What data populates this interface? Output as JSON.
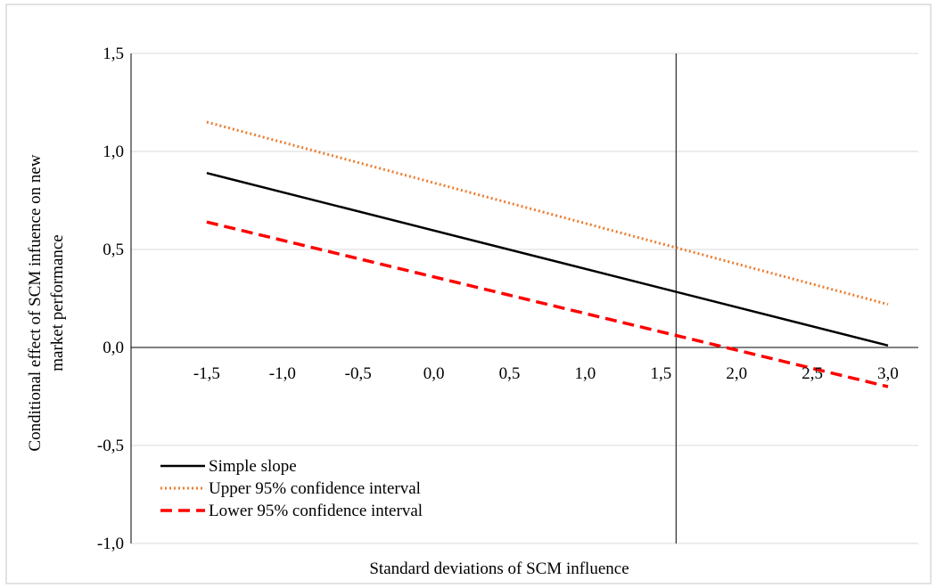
{
  "chart_data": {
    "type": "line",
    "xlabel": "Standard  deviations of SCM influence",
    "ylabel_lines": [
      "Conditional  effect of SCM infuence on new",
      "market performance"
    ],
    "xlim": [
      -2,
      3.2
    ],
    "ylim": [
      -1.0,
      1.5
    ],
    "x_ticks": [
      -1.5,
      -1.0,
      -0.5,
      0.0,
      0.5,
      1.0,
      1.5,
      2.0,
      2.5,
      3.0
    ],
    "x_tick_labels": [
      "-1,5",
      "-1,0",
      "-0,5",
      "0,0",
      "0,5",
      "1,0",
      "1,5",
      "2,0",
      "2,5",
      "3,0"
    ],
    "y_ticks": [
      -1.0,
      -0.5,
      0.0,
      0.5,
      1.0,
      1.5
    ],
    "y_tick_labels": [
      "-1,0",
      "-0,5",
      "0,0",
      "0,5",
      "1,0",
      "1,5"
    ],
    "gridlines_y": true,
    "vertical_reference_x": 1.6,
    "legend_position": "bottom-left",
    "series": [
      {
        "name": "Simple slope",
        "color": "#000000",
        "style": "solid",
        "x": [
          -1.5,
          3.0
        ],
        "y": [
          0.89,
          0.01
        ]
      },
      {
        "name": "Upper 95% confidence interval",
        "color": "#ED7D31",
        "style": "dotted",
        "x": [
          -1.5,
          3.0
        ],
        "y": [
          1.15,
          0.22
        ]
      },
      {
        "name": "Lower 95% confidence interval",
        "color": "#FF0000",
        "style": "dashed",
        "x": [
          -1.5,
          3.0
        ],
        "y": [
          0.64,
          -0.2
        ]
      }
    ]
  }
}
